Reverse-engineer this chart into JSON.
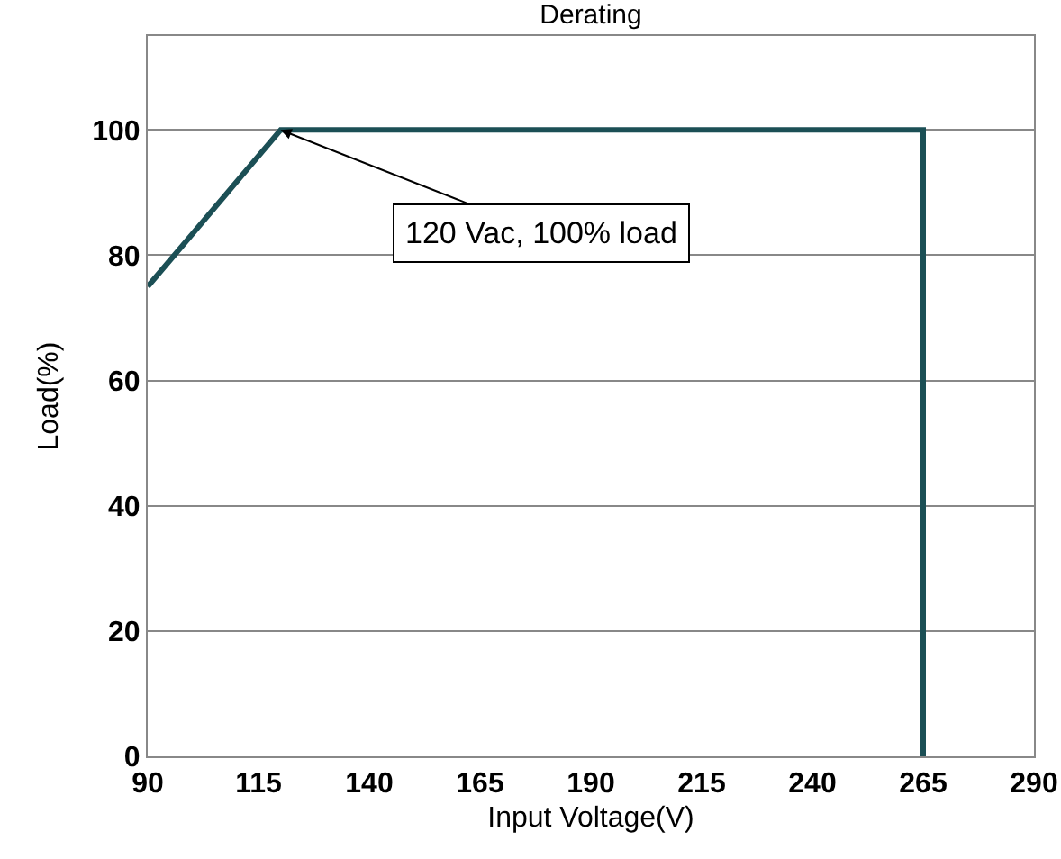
{
  "chart_data": {
    "type": "line",
    "title": "Derating",
    "xlabel": "Input Voltage(V)",
    "ylabel": "Load(%)",
    "x": [
      90,
      120,
      265,
      265
    ],
    "series": [
      {
        "color": "#1b4f55",
        "values": [
          75,
          100,
          100,
          0
        ]
      }
    ],
    "xlim": [
      90,
      290
    ],
    "xticks": [
      90,
      115,
      140,
      165,
      190,
      215,
      240,
      265,
      290
    ],
    "ylim": [
      0,
      115
    ],
    "yticks": [
      0,
      20,
      40,
      60,
      80,
      100
    ],
    "grid": "y",
    "marker": "none",
    "line_style": "solid",
    "annotations": [
      {
        "text": "120 Vac, 100% load",
        "x": 120,
        "y": 100
      }
    ]
  }
}
